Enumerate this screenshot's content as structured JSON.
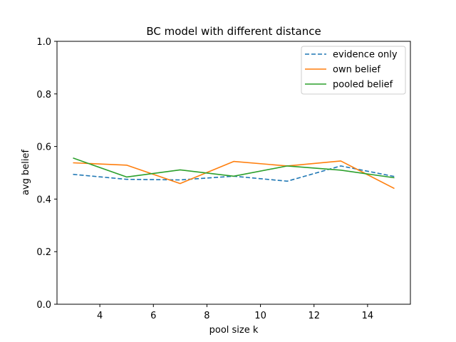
{
  "chart_data": {
    "type": "line",
    "title": "BC model with different distance",
    "xlabel": "pool size k",
    "ylabel": "avg belief",
    "xlim": [
      2.4,
      15.6
    ],
    "ylim": [
      0.0,
      1.0
    ],
    "xticks": [
      4,
      6,
      8,
      10,
      12,
      14
    ],
    "yticks": [
      0.0,
      0.2,
      0.4,
      0.6,
      0.8,
      1.0
    ],
    "ytick_labels": [
      "0.0",
      "0.2",
      "0.4",
      "0.6",
      "0.8",
      "1.0"
    ],
    "grid": false,
    "legend_position": "top-right",
    "x": [
      3,
      5,
      7,
      9,
      11,
      13,
      15
    ],
    "series": [
      {
        "name": "evidence only",
        "color": "#1f77b4",
        "style": "dashed",
        "values": [
          0.494,
          0.475,
          0.473,
          0.487,
          0.468,
          0.526,
          0.486
        ]
      },
      {
        "name": "own belief",
        "color": "#ff7f0e",
        "style": "solid",
        "values": [
          0.538,
          0.529,
          0.459,
          0.543,
          0.526,
          0.545,
          0.44
        ]
      },
      {
        "name": "pooled belief",
        "color": "#2ca02c",
        "style": "solid",
        "values": [
          0.556,
          0.484,
          0.511,
          0.487,
          0.526,
          0.51,
          0.481
        ]
      }
    ]
  }
}
